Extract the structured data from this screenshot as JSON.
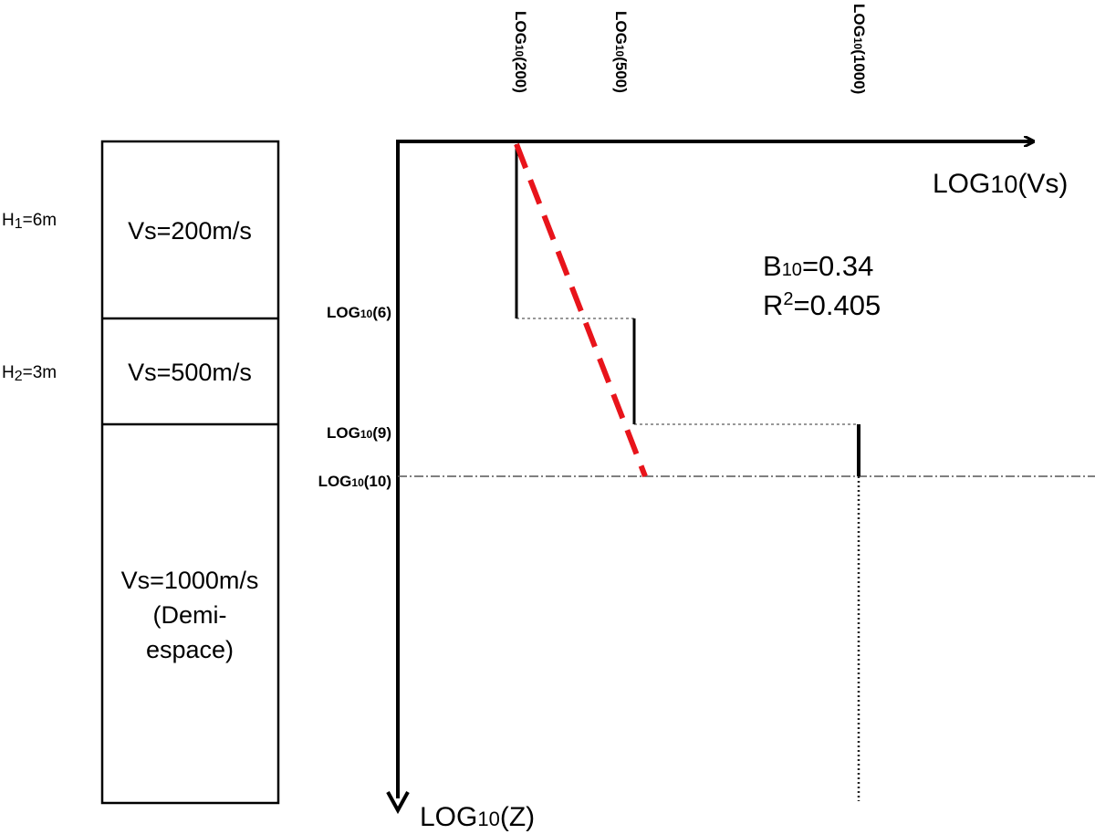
{
  "soil_column": {
    "layers": [
      {
        "velocity": "Vs=200m/s"
      },
      {
        "velocity": "Vs=500m/s"
      },
      {
        "velocity_lines": [
          "Vs=1000m/s",
          "(Demi-",
          "espace)"
        ]
      }
    ],
    "thickness_labels": [
      {
        "base": "H",
        "sub": "1",
        "rest": "=6m"
      },
      {
        "base": "H",
        "sub": "2",
        "rest": "=3m"
      }
    ]
  },
  "chart_data": {
    "type": "line",
    "x_axis": {
      "base": "LOG",
      "sub": "10",
      "rest": "(Vs)",
      "scale": "log"
    },
    "y_axis": {
      "base": "LOG",
      "sub": "10",
      "rest": "(Z)",
      "scale": "log",
      "direction": "down"
    },
    "x_ticks": [
      {
        "value": 200,
        "base": "LOG",
        "sub": "10",
        "rest": "(200)"
      },
      {
        "value": 500,
        "base": "LOG",
        "sub": "10",
        "rest": "(500)"
      },
      {
        "value": 1000,
        "base": "LOG",
        "sub": "10",
        "rest": "(1000)"
      }
    ],
    "y_ticks": [
      {
        "value": 6,
        "base": "LOG",
        "sub": "10",
        "rest": "(6)"
      },
      {
        "value": 9,
        "base": "LOG",
        "sub": "10",
        "rest": "(9)"
      },
      {
        "value": 10,
        "base": "LOG",
        "sub": "10",
        "rest": "(10)"
      }
    ],
    "series": [
      {
        "style": "step-profile",
        "color": "#000000",
        "points": [
          {
            "vs": 200,
            "z": 1
          },
          {
            "vs": 200,
            "z": 6
          },
          {
            "vs": 500,
            "z": 6
          },
          {
            "vs": 500,
            "z": 9
          },
          {
            "vs": 1000,
            "z": 9
          },
          {
            "vs": 1000,
            "z": 10
          }
        ]
      },
      {
        "style": "dashed-fit",
        "color": "#e8141b",
        "points": [
          {
            "vs": 200,
            "z": 1
          },
          {
            "vs": 550,
            "z": 10
          }
        ]
      }
    ],
    "annotations": {
      "b": {
        "base": "B",
        "sub": "10",
        "rest": "=0.34"
      },
      "r2": {
        "base": "R",
        "sup": "2",
        "rest": "=0.405"
      }
    }
  }
}
